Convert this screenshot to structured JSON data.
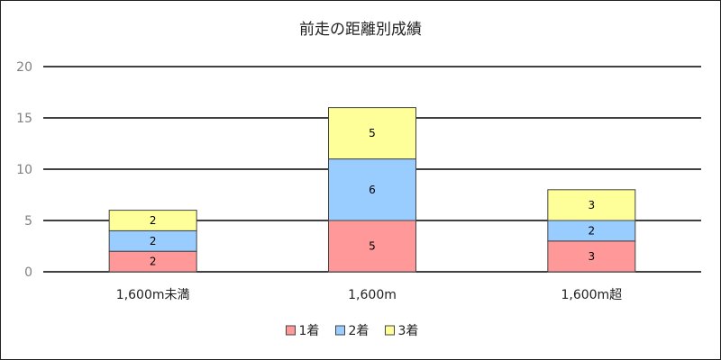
{
  "chart_data": {
    "type": "bar",
    "stacked": true,
    "title": "前走の距離別成績",
    "categories": [
      "1,600m未満",
      "1,600m",
      "1,600m超"
    ],
    "series": [
      {
        "name": "1着",
        "values": [
          2,
          5,
          3
        ],
        "color": "#ff9999"
      },
      {
        "name": "2着",
        "values": [
          2,
          6,
          2
        ],
        "color": "#99ccff"
      },
      {
        "name": "3着",
        "values": [
          2,
          5,
          3
        ],
        "color": "#ffff99"
      }
    ],
    "yticks": [
      0,
      5,
      10,
      15,
      20
    ],
    "ylim": [
      0,
      20
    ],
    "grid": true,
    "legend_position": "bottom",
    "bar_border_color": "#444444",
    "gridline_color": "#000000"
  }
}
